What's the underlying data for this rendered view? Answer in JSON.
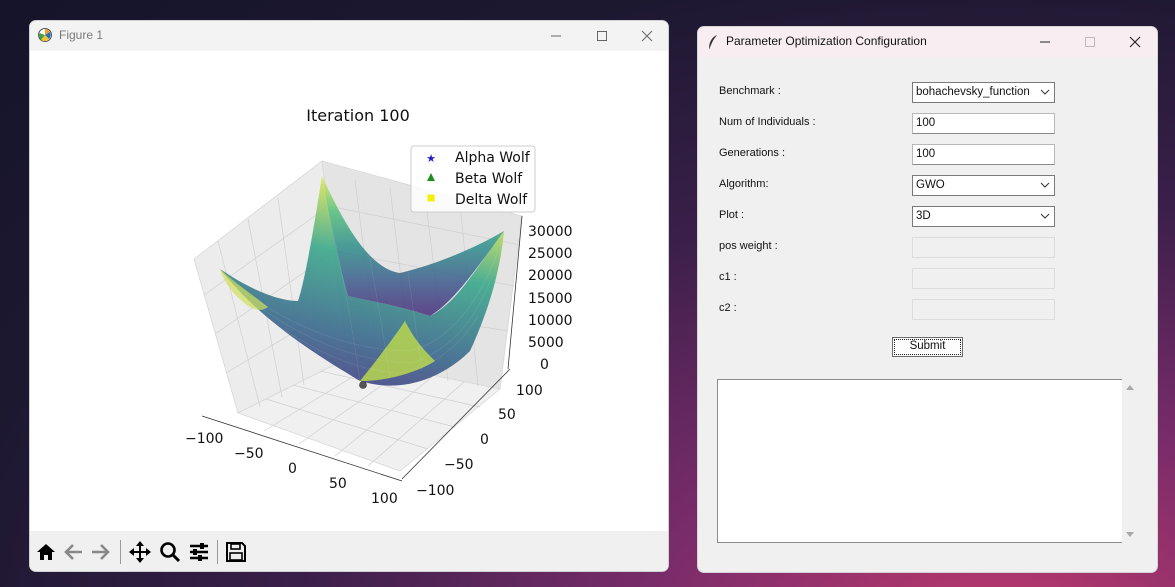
{
  "figure_window": {
    "title": "Figure 1",
    "plot": {
      "title": "Iteration 100",
      "legend": [
        "Alpha Wolf",
        "Beta Wolf",
        "Delta Wolf"
      ],
      "z_ticks": [
        "30000",
        "25000",
        "20000",
        "15000",
        "10000",
        "5000",
        "0"
      ],
      "x_ticks": [
        "−100",
        "−50",
        "0",
        "50",
        "100"
      ],
      "y_ticks": [
        "100",
        "50",
        "0",
        "−50",
        "−100"
      ]
    },
    "toolbar_icons": [
      "home-icon",
      "back-icon",
      "forward-icon",
      "pan-icon",
      "zoom-icon",
      "configure-icon",
      "save-icon"
    ]
  },
  "config_window": {
    "title": "Parameter Optimization Configuration",
    "fields": {
      "benchmark_label": "Benchmark :",
      "benchmark_value": "bohachevsky_function",
      "individuals_label": "Num of Individuals :",
      "individuals_value": "100",
      "generations_label": "Generations :",
      "generations_value": "100",
      "algorithm_label": "Algorithm:",
      "algorithm_value": "GWO",
      "plot_label": "Plot :",
      "plot_value": "3D",
      "pos_weight_label": "pos weight :",
      "c1_label": "c1 :",
      "c2_label": "c2 :"
    },
    "submit_label": "Submit"
  }
}
